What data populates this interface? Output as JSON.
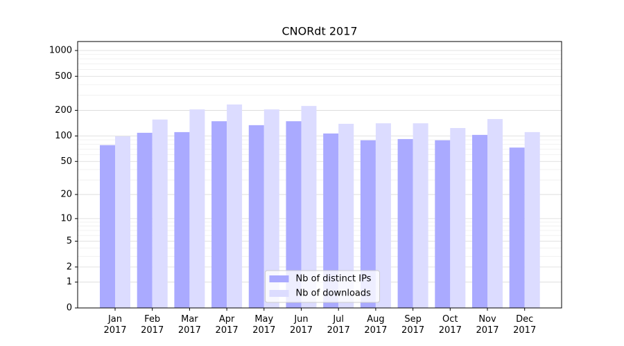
{
  "chart_data": {
    "type": "bar",
    "title": "CNORdt 2017",
    "yscale": "log1p",
    "categories": [
      "Jan\n2017",
      "Feb\n2017",
      "Mar\n2017",
      "Apr\n2017",
      "May\n2017",
      "Jun\n2017",
      "Jul\n2017",
      "Aug\n2017",
      "Sep\n2017",
      "Oct\n2017",
      "Nov\n2017",
      "Dec\n2017"
    ],
    "series": [
      {
        "name": "Nb of distinct IPs",
        "color": "#aaaaff",
        "values": [
          78,
          109,
          111,
          149,
          134,
          149,
          107,
          89,
          92,
          89,
          103,
          73
        ]
      },
      {
        "name": "Nb of downloads",
        "color": "#dcdcff",
        "values": [
          99,
          156,
          205,
          234,
          205,
          225,
          139,
          141,
          141,
          124,
          158,
          111
        ]
      }
    ],
    "ylim": [
      0,
      1273
    ],
    "yticks": [
      0,
      1,
      2,
      5,
      10,
      20,
      50,
      100,
      200,
      500,
      1000
    ],
    "yminorticks": [
      3,
      4,
      6,
      7,
      8,
      9,
      30,
      40,
      60,
      70,
      80,
      90,
      300,
      400,
      600,
      700,
      800,
      900
    ],
    "grid": true,
    "legend": "lower center"
  }
}
